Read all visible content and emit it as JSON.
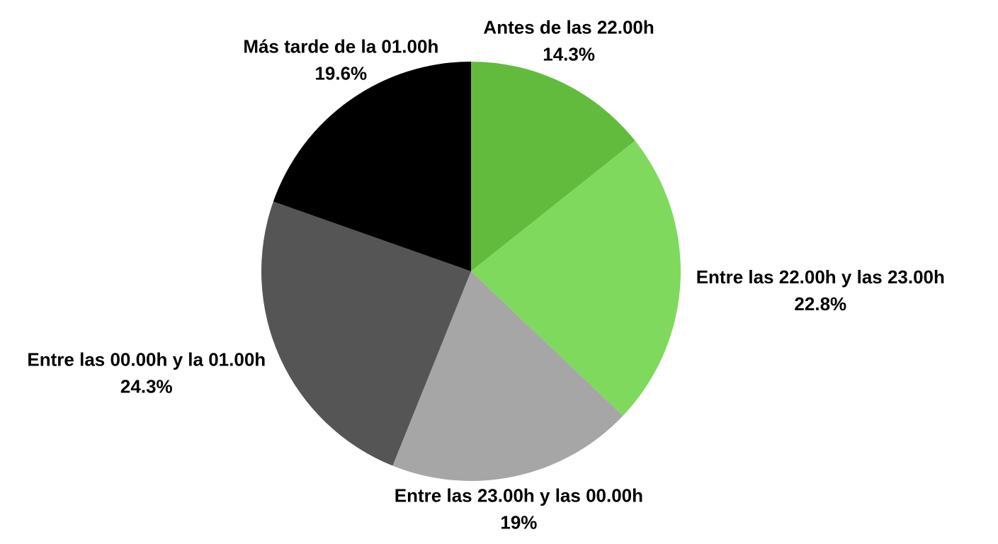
{
  "chart_data": {
    "type": "pie",
    "categories": [
      "Antes de las 22.00h",
      "Entre las 22.00h y las 23.00h",
      "Entre las 23.00h y las 00.00h",
      "Entre las 00.00h y la 01.00h",
      "Más tarde de la 01.00h"
    ],
    "values": [
      14.3,
      22.8,
      19,
      24.3,
      19.6
    ],
    "value_labels": [
      "14.3%",
      "22.8%",
      "19%",
      "24.3%",
      "19.6%"
    ],
    "colors": [
      "#62bb3d",
      "#7fd95d",
      "#a6a6a6",
      "#555555",
      "#000000"
    ]
  }
}
